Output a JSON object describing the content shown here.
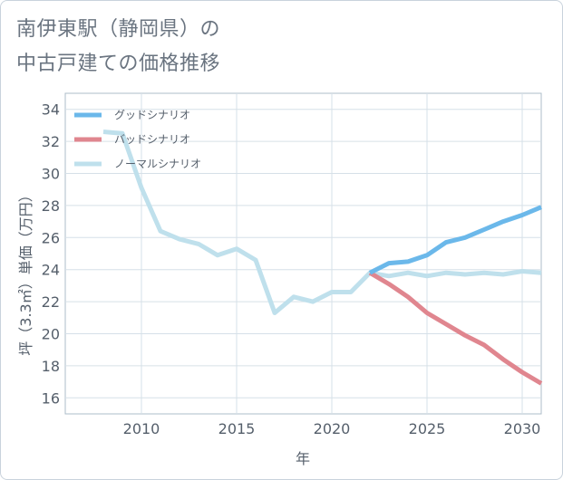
{
  "title_line1": "南伊東駅（静岡県）の",
  "title_line2": "中古戸建ての価格推移",
  "chart_data": {
    "type": "line",
    "xlabel": "年",
    "ylabel": "坪（3.3㎡）単価（万円）",
    "xlim": [
      2006,
      2031
    ],
    "ylim": [
      15,
      35
    ],
    "xticks": [
      2010,
      2015,
      2020,
      2025,
      2030
    ],
    "yticks": [
      16,
      18,
      20,
      22,
      24,
      26,
      28,
      30,
      32,
      34
    ],
    "grid": true,
    "legend_position": "top-left",
    "series": [
      {
        "name": "グッドシナリオ",
        "color": "#6bb8ea",
        "x": [
          2022,
          2023,
          2024,
          2025,
          2026,
          2027,
          2028,
          2029,
          2030,
          2031
        ],
        "y": [
          23.8,
          24.4,
          24.5,
          24.9,
          25.7,
          26.0,
          26.5,
          27.0,
          27.4,
          27.9
        ]
      },
      {
        "name": "バッドシナリオ",
        "color": "#e0868f",
        "x": [
          2022,
          2023,
          2024,
          2025,
          2026,
          2027,
          2028,
          2029,
          2030,
          2031
        ],
        "y": [
          23.8,
          23.1,
          22.3,
          21.3,
          20.6,
          19.9,
          19.3,
          18.4,
          17.6,
          16.9
        ]
      },
      {
        "name": "ノーマルシナリオ",
        "color": "#bfe0ec",
        "x": [
          2008,
          2009,
          2010,
          2011,
          2012,
          2013,
          2014,
          2015,
          2016,
          2017,
          2018,
          2019,
          2020,
          2021,
          2022,
          2023,
          2024,
          2025,
          2026,
          2027,
          2028,
          2029,
          2030,
          2031
        ],
        "y": [
          32.6,
          32.5,
          29.1,
          26.4,
          25.9,
          25.6,
          24.9,
          25.3,
          24.6,
          21.3,
          22.3,
          22.0,
          22.6,
          22.6,
          23.8,
          23.6,
          23.8,
          23.6,
          23.8,
          23.7,
          23.8,
          23.7,
          23.9,
          23.8
        ]
      }
    ]
  }
}
